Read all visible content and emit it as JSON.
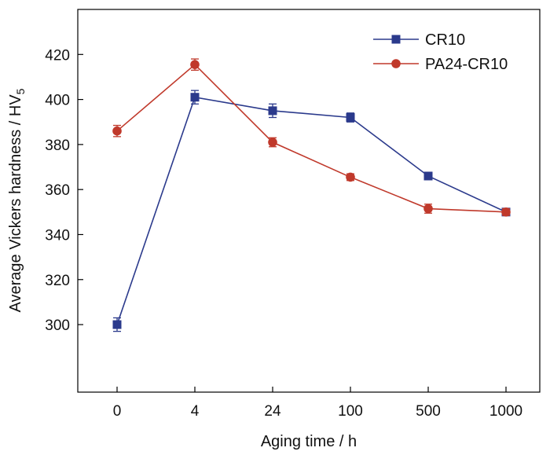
{
  "chart_data": {
    "type": "line",
    "title": "",
    "xlabel": "Aging time / h",
    "ylabel": "Average Vickers hardness / HV",
    "ylabel_subscript": "5",
    "x_scale": "categorical",
    "categories": [
      "0",
      "4",
      "24",
      "100",
      "500",
      "1000"
    ],
    "ylim": [
      270,
      440
    ],
    "yticks": [
      300,
      320,
      340,
      360,
      380,
      400,
      420
    ],
    "grid": false,
    "legend_position": "top-right",
    "series": [
      {
        "name": "CR10",
        "color": "#2b3a8c",
        "marker": "square",
        "values": [
          300,
          401,
          395,
          392,
          366,
          350
        ],
        "errors": [
          3,
          3,
          3,
          2,
          1.5,
          1.5
        ]
      },
      {
        "name": "PA24-CR10",
        "color": "#c0392b",
        "marker": "circle",
        "values": [
          386,
          415.5,
          381,
          365.5,
          351.5,
          350
        ],
        "errors": [
          2.5,
          2.5,
          2,
          1.5,
          2,
          1.5
        ]
      }
    ]
  }
}
